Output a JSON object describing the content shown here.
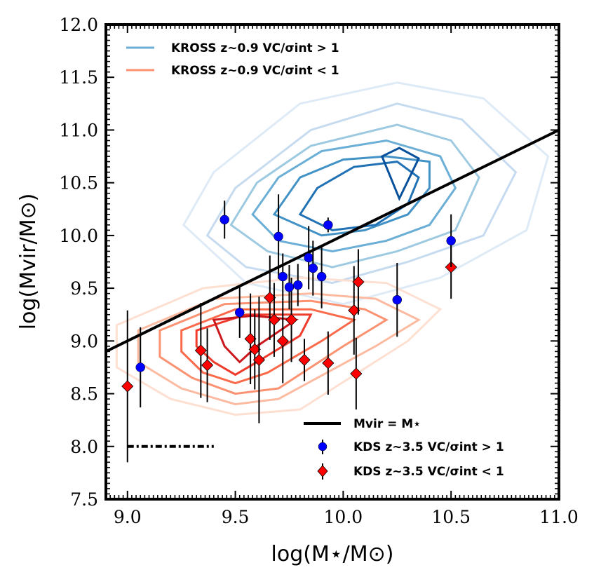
{
  "chart_data": {
    "type": "scatter",
    "xlabel": "log(M⋆/M⊙)",
    "ylabel": "log(Mvir/M⊙)",
    "xlim": [
      8.9,
      11.0
    ],
    "ylim": [
      7.5,
      12.0
    ],
    "xticks": [
      "9.0",
      "9.5",
      "10.0",
      "10.5",
      "11.0"
    ],
    "yticks": [
      "7.5",
      "8.0",
      "8.5",
      "9.0",
      "9.5",
      "10.0",
      "10.5",
      "11.0",
      "11.5",
      "12.0"
    ],
    "legend": {
      "kross_high": "KROSS z∼0.9 VC/σint > 1",
      "kross_low": "KROSS z∼0.9 VC/σint < 1",
      "one_to_one": "Mvir = M⋆",
      "kds_high": "KDS z∼3.5 VC/σint > 1",
      "kds_low": "KDS z∼3.5 VC/σint < 1"
    },
    "one_to_one_line": {
      "x": [
        8.9,
        11.0
      ],
      "y": [
        8.9,
        11.0
      ]
    },
    "typical_uncertainty": {
      "x": [
        9.0,
        9.4
      ],
      "y": 8.0
    },
    "kds_high": {
      "name": "KDS z∼3.5 VC/σint > 1",
      "color": "#0000ff",
      "points": [
        {
          "x": 9.06,
          "y": 8.75,
          "yerr": 0.38
        },
        {
          "x": 9.45,
          "y": 10.15,
          "yerr": 0.18
        },
        {
          "x": 9.52,
          "y": 9.27,
          "yerr": 0.24
        },
        {
          "x": 9.7,
          "y": 9.99,
          "yerr": 0.4
        },
        {
          "x": 9.72,
          "y": 9.61,
          "yerr": 0.22
        },
        {
          "x": 9.75,
          "y": 9.51,
          "yerr": 0.21
        },
        {
          "x": 9.79,
          "y": 9.53,
          "yerr": 0.2
        },
        {
          "x": 9.84,
          "y": 9.79,
          "yerr": 0.3
        },
        {
          "x": 9.86,
          "y": 9.69,
          "yerr": 0.26
        },
        {
          "x": 9.9,
          "y": 9.61,
          "yerr": 0.3
        },
        {
          "x": 9.93,
          "y": 10.1,
          "yerr": 0.07
        },
        {
          "x": 10.25,
          "y": 9.39,
          "yerr": 0.35
        },
        {
          "x": 10.5,
          "y": 9.95,
          "yerr": 0.25
        }
      ]
    },
    "kds_low": {
      "name": "KDS z∼3.5 VC/σint < 1",
      "color": "#ff0000",
      "points": [
        {
          "x": 9.0,
          "y": 8.57,
          "yerr": 0.72
        },
        {
          "x": 9.34,
          "y": 8.91,
          "yerr": 0.45
        },
        {
          "x": 9.37,
          "y": 8.77,
          "yerr": 0.35
        },
        {
          "x": 9.57,
          "y": 9.02,
          "yerr": 0.43
        },
        {
          "x": 9.59,
          "y": 8.92,
          "yerr": 0.38
        },
        {
          "x": 9.61,
          "y": 8.82,
          "yerr": 0.6
        },
        {
          "x": 9.66,
          "y": 9.41,
          "yerr": 0.4
        },
        {
          "x": 9.68,
          "y": 9.2,
          "yerr": 0.35
        },
        {
          "x": 9.72,
          "y": 9.0,
          "yerr": 0.4
        },
        {
          "x": 9.76,
          "y": 9.2,
          "yerr": 0.4
        },
        {
          "x": 9.82,
          "y": 8.82,
          "yerr": 0.2
        },
        {
          "x": 9.93,
          "y": 8.79,
          "yerr": 0.3
        },
        {
          "x": 10.05,
          "y": 9.29,
          "yerr": 0.42
        },
        {
          "x": 10.06,
          "y": 8.69,
          "yerr": 0.34
        },
        {
          "x": 10.07,
          "y": 9.56,
          "yerr": 0.31
        },
        {
          "x": 10.5,
          "y": 9.7,
          "yerr": 0.3
        }
      ]
    },
    "kross_high_contours": [
      {
        "color": "#deebf7",
        "points": [
          [
            9.26,
            10.1
          ],
          [
            9.4,
            10.6
          ],
          [
            9.8,
            11.25
          ],
          [
            10.25,
            11.45
          ],
          [
            10.65,
            11.3
          ],
          [
            10.95,
            10.75
          ],
          [
            10.85,
            10.05
          ],
          [
            10.45,
            9.6
          ],
          [
            10.0,
            9.35
          ],
          [
            9.55,
            9.55
          ]
        ]
      },
      {
        "color": "#c6dbef",
        "points": [
          [
            9.37,
            10.0
          ],
          [
            9.5,
            10.45
          ],
          [
            9.85,
            11.0
          ],
          [
            10.25,
            11.25
          ],
          [
            10.55,
            11.1
          ],
          [
            10.8,
            10.6
          ],
          [
            10.65,
            10.0
          ],
          [
            10.3,
            9.75
          ],
          [
            9.95,
            9.55
          ],
          [
            9.55,
            9.7
          ]
        ]
      },
      {
        "color": "#9ecae1",
        "points": [
          [
            9.48,
            10.1
          ],
          [
            9.6,
            10.5
          ],
          [
            9.85,
            10.85
          ],
          [
            10.25,
            11.05
          ],
          [
            10.5,
            10.9
          ],
          [
            10.63,
            10.55
          ],
          [
            10.52,
            10.05
          ],
          [
            10.25,
            9.85
          ],
          [
            9.95,
            9.7
          ],
          [
            9.65,
            9.85
          ]
        ]
      },
      {
        "color": "#6baed6",
        "points": [
          [
            9.58,
            10.2
          ],
          [
            9.7,
            10.55
          ],
          [
            9.9,
            10.8
          ],
          [
            10.2,
            10.9
          ],
          [
            10.45,
            10.75
          ],
          [
            10.52,
            10.45
          ],
          [
            10.4,
            10.1
          ],
          [
            10.2,
            9.95
          ],
          [
            9.95,
            9.85
          ],
          [
            9.7,
            9.95
          ]
        ]
      },
      {
        "color": "#4292c6",
        "points": [
          [
            9.68,
            10.2
          ],
          [
            9.8,
            10.55
          ],
          [
            10.0,
            10.72
          ],
          [
            10.2,
            10.75
          ],
          [
            10.4,
            10.7
          ],
          [
            10.4,
            10.45
          ],
          [
            10.3,
            10.2
          ],
          [
            10.1,
            10.05
          ],
          [
            9.9,
            10.0
          ]
        ]
      },
      {
        "color": "#2171b5",
        "points": [
          [
            9.8,
            10.2
          ],
          [
            9.88,
            10.45
          ],
          [
            10.05,
            10.65
          ],
          [
            10.25,
            10.7
          ],
          [
            10.35,
            10.55
          ],
          [
            10.3,
            10.3
          ],
          [
            10.15,
            10.1
          ],
          [
            9.95,
            10.05
          ]
        ]
      },
      {
        "color": "#08519c",
        "points": [
          [
            10.18,
            10.75
          ],
          [
            10.26,
            10.83
          ],
          [
            10.35,
            10.73
          ],
          [
            10.26,
            10.35
          ]
        ]
      }
    ],
    "kross_low_contours": [
      {
        "color": "#fee0d2",
        "points": [
          [
            8.95,
            9.15
          ],
          [
            9.35,
            9.5
          ],
          [
            9.8,
            9.6
          ],
          [
            10.2,
            9.55
          ],
          [
            10.45,
            9.3
          ],
          [
            10.3,
            9.0
          ],
          [
            9.8,
            8.35
          ],
          [
            9.5,
            8.3
          ],
          [
            9.2,
            8.45
          ],
          [
            8.95,
            8.75
          ]
        ]
      },
      {
        "color": "#fcbba1",
        "points": [
          [
            9.05,
            9.1
          ],
          [
            9.4,
            9.4
          ],
          [
            9.85,
            9.45
          ],
          [
            10.15,
            9.4
          ],
          [
            10.35,
            9.2
          ],
          [
            10.15,
            8.95
          ],
          [
            9.7,
            8.45
          ],
          [
            9.5,
            8.4
          ],
          [
            9.25,
            8.55
          ],
          [
            9.05,
            8.8
          ]
        ]
      },
      {
        "color": "#fc9272",
        "points": [
          [
            9.15,
            9.1
          ],
          [
            9.45,
            9.35
          ],
          [
            9.85,
            9.38
          ],
          [
            10.1,
            9.3
          ],
          [
            10.2,
            9.2
          ],
          [
            10.0,
            8.95
          ],
          [
            9.7,
            8.55
          ],
          [
            9.5,
            8.5
          ],
          [
            9.3,
            8.65
          ],
          [
            9.15,
            8.85
          ]
        ]
      },
      {
        "color": "#fb6a4a",
        "points": [
          [
            9.25,
            9.1
          ],
          [
            9.5,
            9.3
          ],
          [
            9.85,
            9.3
          ],
          [
            10.05,
            9.2
          ],
          [
            9.9,
            9.0
          ],
          [
            9.65,
            8.7
          ],
          [
            9.5,
            8.6
          ],
          [
            9.35,
            8.7
          ],
          [
            9.25,
            8.9
          ]
        ]
      },
      {
        "color": "#ef3b2c",
        "points": [
          [
            9.32,
            9.1
          ],
          [
            9.55,
            9.25
          ],
          [
            9.85,
            9.25
          ],
          [
            9.8,
            9.05
          ],
          [
            9.6,
            8.8
          ],
          [
            9.5,
            8.68
          ],
          [
            9.4,
            8.8
          ],
          [
            9.32,
            8.95
          ]
        ]
      },
      {
        "color": "#cb181d",
        "points": [
          [
            9.4,
            9.2
          ],
          [
            9.58,
            9.24
          ],
          [
            9.78,
            9.2
          ],
          [
            9.6,
            8.95
          ],
          [
            9.52,
            8.8
          ],
          [
            9.45,
            8.95
          ]
        ]
      }
    ]
  }
}
